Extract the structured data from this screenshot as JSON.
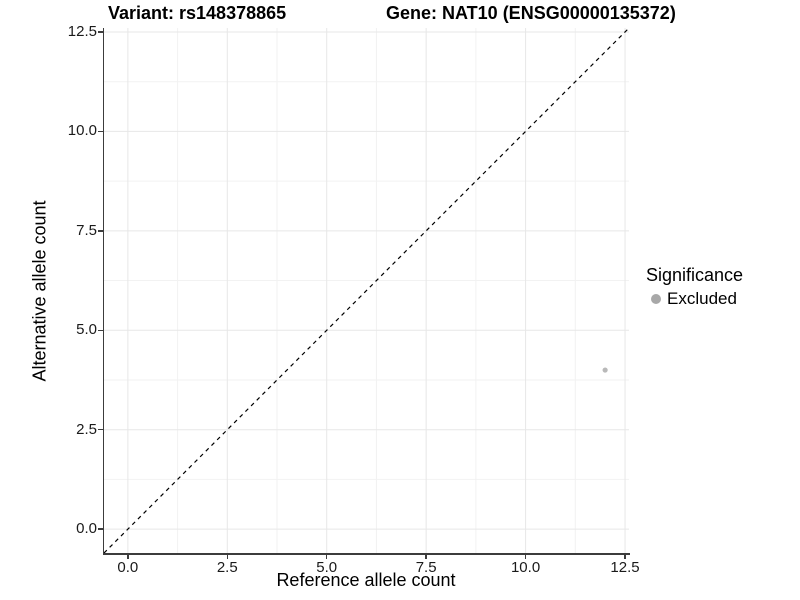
{
  "figure": {
    "title_variant": "Variant: rs148378865",
    "title_gene": "Gene: NAT10 (ENSG00000135372)"
  },
  "chart_data": {
    "type": "scatter",
    "title": "Variant: rs148378865    Gene: NAT10 (ENSG00000135372)",
    "xlabel": "Reference allele count",
    "ylabel": "Alternative allele count",
    "xlim": [
      -0.6,
      12.6
    ],
    "ylim": [
      -0.6,
      12.6
    ],
    "x_ticks": {
      "values": [
        0,
        2.5,
        5,
        7.5,
        10,
        12.5
      ],
      "labels": [
        "0.0",
        "2.5",
        "5.0",
        "7.5",
        "10.0",
        "12.5"
      ]
    },
    "y_ticks": {
      "values": [
        0,
        2.5,
        5,
        7.5,
        10,
        12.5
      ],
      "labels": [
        "0.0",
        "2.5",
        "5.0",
        "7.5",
        "10.0",
        "12.5"
      ]
    },
    "x_minor_ticks": [
      1.25,
      3.75,
      6.25,
      8.75,
      11.25
    ],
    "y_minor_ticks": [
      1.25,
      3.75,
      6.25,
      8.75,
      11.25
    ],
    "grid": "major+minor",
    "legend_position": "right",
    "identity_line": {
      "style": "dashed",
      "x1": -0.6,
      "y1": -0.6,
      "x2": 12.6,
      "y2": 12.6,
      "color": "#000000"
    },
    "series": [
      {
        "name": "Excluded",
        "color": "#b9b9b9",
        "point_radius": 2.6,
        "points": [
          {
            "x": 12,
            "y": 4
          }
        ]
      }
    ],
    "legend": {
      "title": "Significance",
      "entries": [
        {
          "label": "Excluded",
          "color": "#a8a8a8"
        }
      ]
    }
  },
  "colors": {
    "background": "#ffffff",
    "axis_line": "#3c3c3c",
    "grid_major": "#e7e7e7",
    "grid_minor": "#f2f2f2",
    "tick_label": "#1a1a1a",
    "title_text": "#000000",
    "point": "#b9b9b9",
    "legend_key": "#a8a8a8",
    "identity_line": "#000000"
  }
}
